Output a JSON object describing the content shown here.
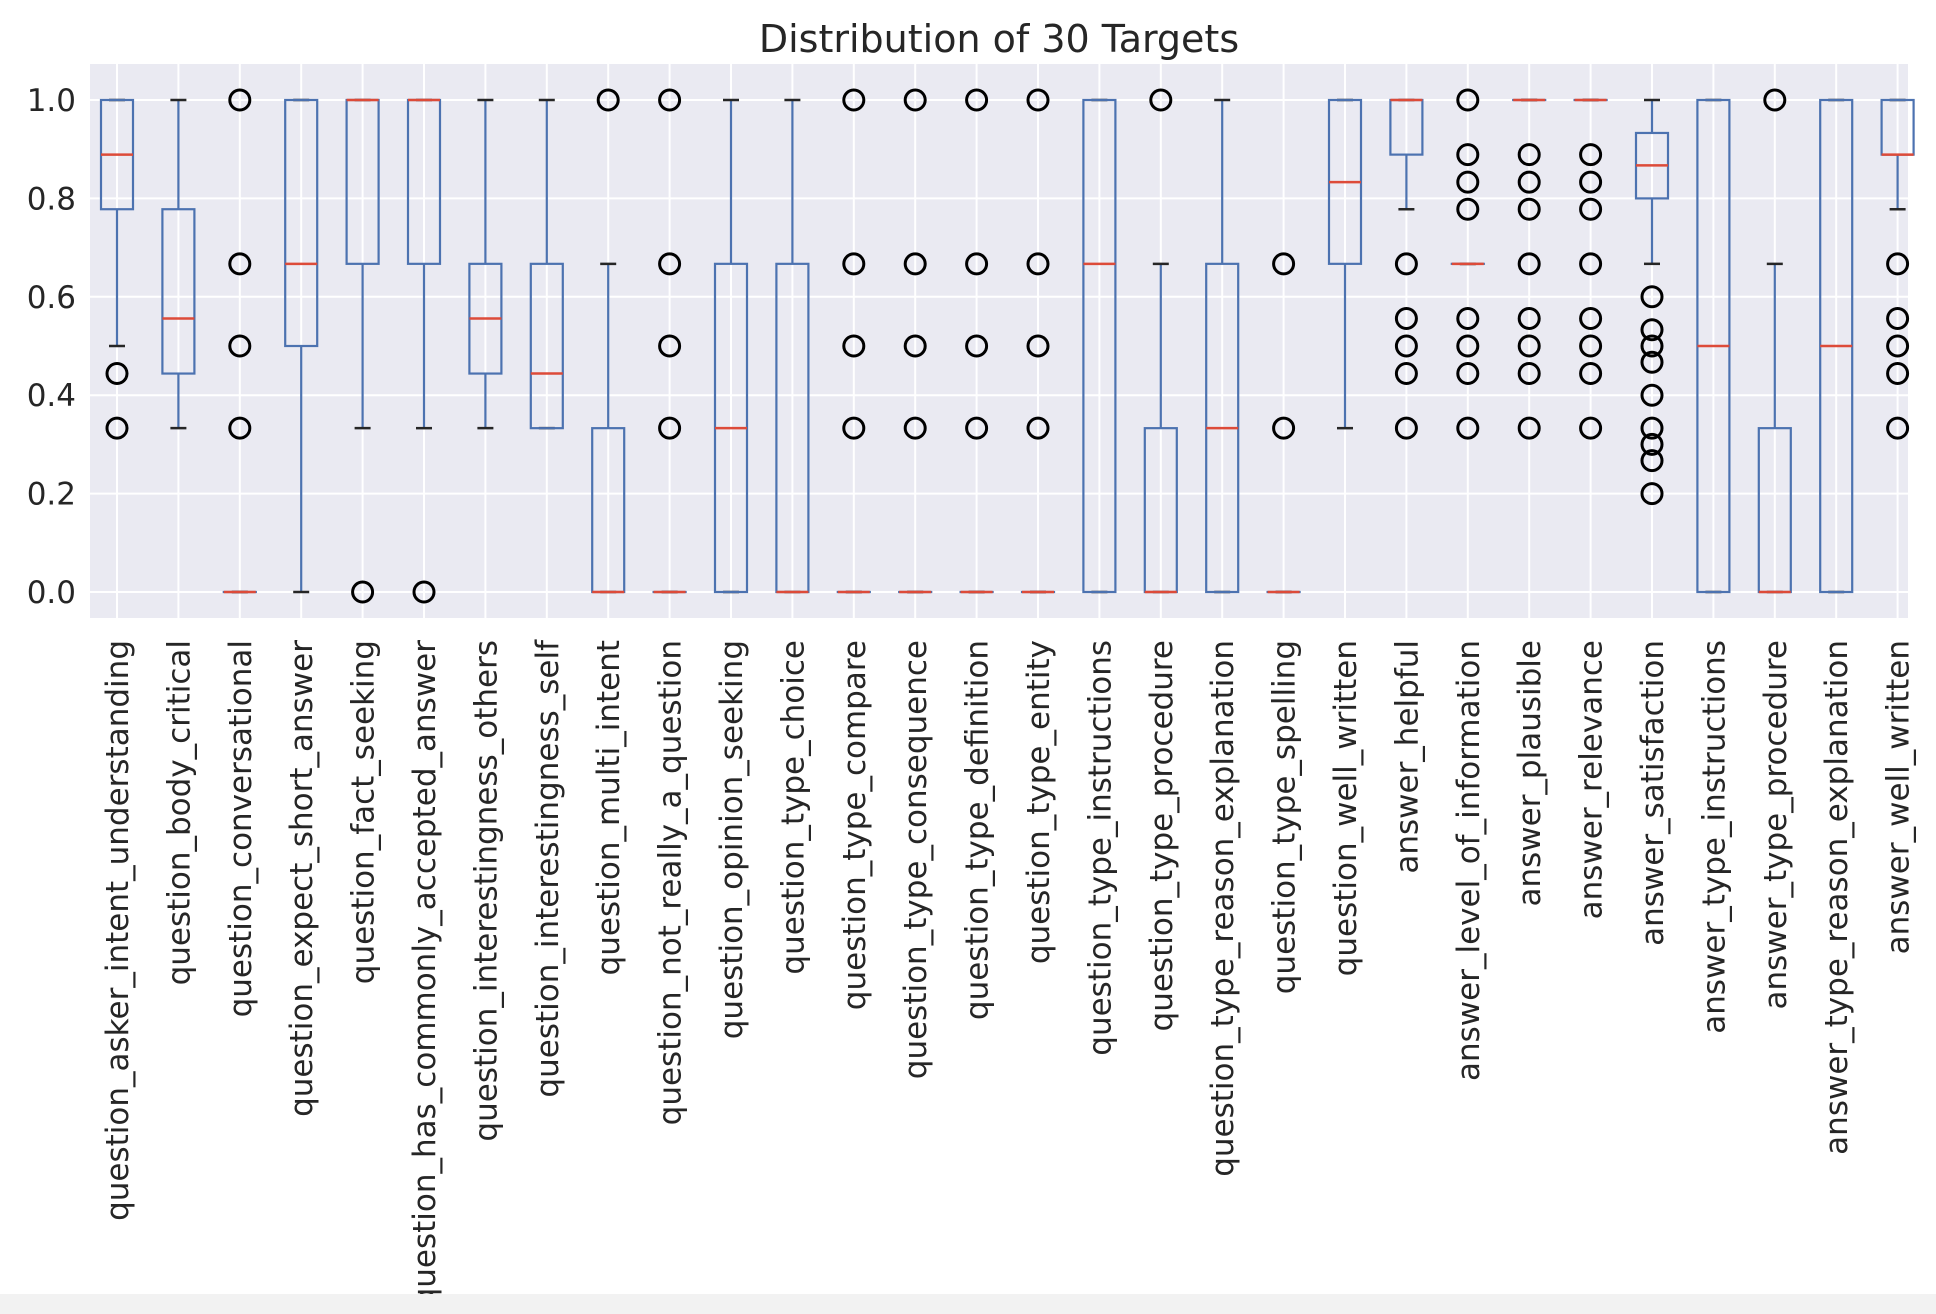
{
  "chart_data": {
    "type": "box",
    "title": "Distribution of 30 Targets",
    "xlabel": "",
    "ylabel": "",
    "ylim": [
      -0.05,
      1.05
    ],
    "yticks": [
      "0.0",
      "0.2",
      "0.4",
      "0.6",
      "0.8",
      "1.0"
    ],
    "grid": true,
    "colors": {
      "background": "#eaeaf2",
      "grid": "#ffffff",
      "box": "#4c72b0",
      "median": "#dd4b39",
      "flier": "#000000",
      "text": "#262626"
    },
    "categories": [
      "question_asker_intent_understanding",
      "question_body_critical",
      "question_conversational",
      "question_expect_short_answer",
      "question_fact_seeking",
      "question_has_commonly_accepted_answer",
      "question_interestingness_others",
      "question_interestingness_self",
      "question_multi_intent",
      "question_not_really_a_question",
      "question_opinion_seeking",
      "question_type_choice",
      "question_type_compare",
      "question_type_consequence",
      "question_type_definition",
      "question_type_entity",
      "question_type_instructions",
      "question_type_procedure",
      "question_type_reason_explanation",
      "question_type_spelling",
      "question_well_written",
      "answer_helpful",
      "answer_level_of_information",
      "answer_plausible",
      "answer_relevance",
      "answer_satisfaction",
      "answer_type_instructions",
      "answer_type_procedure",
      "answer_type_reason_explanation",
      "answer_well_written"
    ],
    "boxes": [
      {
        "whislo": 0.5,
        "q1": 0.778,
        "med": 0.889,
        "q3": 1.0,
        "whishi": 1.0,
        "fliers": [
          0.444,
          0.333
        ]
      },
      {
        "whislo": 0.333,
        "q1": 0.444,
        "med": 0.556,
        "q3": 0.778,
        "whishi": 1.0,
        "fliers": []
      },
      {
        "whislo": 0.0,
        "q1": 0.0,
        "med": 0.0,
        "q3": 0.0,
        "whishi": 0.0,
        "fliers": [
          1.0,
          0.667,
          0.5,
          0.333
        ]
      },
      {
        "whislo": 0.0,
        "q1": 0.5,
        "med": 0.667,
        "q3": 1.0,
        "whishi": 1.0,
        "fliers": []
      },
      {
        "whislo": 0.333,
        "q1": 0.667,
        "med": 1.0,
        "q3": 1.0,
        "whishi": 1.0,
        "fliers": [
          0.0
        ]
      },
      {
        "whislo": 0.333,
        "q1": 0.667,
        "med": 1.0,
        "q3": 1.0,
        "whishi": 1.0,
        "fliers": [
          0.0
        ]
      },
      {
        "whislo": 0.333,
        "q1": 0.444,
        "med": 0.556,
        "q3": 0.667,
        "whishi": 1.0,
        "fliers": []
      },
      {
        "whislo": 0.333,
        "q1": 0.333,
        "med": 0.444,
        "q3": 0.667,
        "whishi": 1.0,
        "fliers": []
      },
      {
        "whislo": 0.0,
        "q1": 0.0,
        "med": 0.0,
        "q3": 0.333,
        "whishi": 0.667,
        "fliers": [
          1.0
        ]
      },
      {
        "whislo": 0.0,
        "q1": 0.0,
        "med": 0.0,
        "q3": 0.0,
        "whishi": 0.0,
        "fliers": [
          1.0,
          0.667,
          0.5,
          0.333
        ]
      },
      {
        "whislo": 0.0,
        "q1": 0.0,
        "med": 0.333,
        "q3": 0.667,
        "whishi": 1.0,
        "fliers": []
      },
      {
        "whislo": 0.0,
        "q1": 0.0,
        "med": 0.0,
        "q3": 0.667,
        "whishi": 1.0,
        "fliers": []
      },
      {
        "whislo": 0.0,
        "q1": 0.0,
        "med": 0.0,
        "q3": 0.0,
        "whishi": 0.0,
        "fliers": [
          1.0,
          0.667,
          0.5,
          0.333
        ]
      },
      {
        "whislo": 0.0,
        "q1": 0.0,
        "med": 0.0,
        "q3": 0.0,
        "whishi": 0.0,
        "fliers": [
          1.0,
          0.667,
          0.5,
          0.333
        ]
      },
      {
        "whislo": 0.0,
        "q1": 0.0,
        "med": 0.0,
        "q3": 0.0,
        "whishi": 0.0,
        "fliers": [
          1.0,
          0.667,
          0.5,
          0.333
        ]
      },
      {
        "whislo": 0.0,
        "q1": 0.0,
        "med": 0.0,
        "q3": 0.0,
        "whishi": 0.0,
        "fliers": [
          1.0,
          0.667,
          0.5,
          0.333
        ]
      },
      {
        "whislo": 0.0,
        "q1": 0.0,
        "med": 0.667,
        "q3": 1.0,
        "whishi": 1.0,
        "fliers": []
      },
      {
        "whislo": 0.0,
        "q1": 0.0,
        "med": 0.0,
        "q3": 0.333,
        "whishi": 0.667,
        "fliers": [
          1.0
        ]
      },
      {
        "whislo": 0.0,
        "q1": 0.0,
        "med": 0.333,
        "q3": 0.667,
        "whishi": 1.0,
        "fliers": []
      },
      {
        "whislo": 0.0,
        "q1": 0.0,
        "med": 0.0,
        "q3": 0.0,
        "whishi": 0.0,
        "fliers": [
          0.667,
          0.333
        ]
      },
      {
        "whislo": 0.333,
        "q1": 0.667,
        "med": 0.833,
        "q3": 1.0,
        "whishi": 1.0,
        "fliers": []
      },
      {
        "whislo": 0.778,
        "q1": 0.889,
        "med": 1.0,
        "q3": 1.0,
        "whishi": 1.0,
        "fliers": [
          0.667,
          0.556,
          0.5,
          0.444,
          0.333
        ]
      },
      {
        "whislo": 0.667,
        "q1": 0.667,
        "med": 0.667,
        "q3": 0.667,
        "whishi": 0.667,
        "fliers": [
          1.0,
          0.889,
          0.833,
          0.778,
          0.556,
          0.5,
          0.444,
          0.333
        ]
      },
      {
        "whislo": 1.0,
        "q1": 1.0,
        "med": 1.0,
        "q3": 1.0,
        "whishi": 1.0,
        "fliers": [
          0.889,
          0.833,
          0.778,
          0.667,
          0.556,
          0.5,
          0.444,
          0.333
        ]
      },
      {
        "whislo": 1.0,
        "q1": 1.0,
        "med": 1.0,
        "q3": 1.0,
        "whishi": 1.0,
        "fliers": [
          0.889,
          0.833,
          0.778,
          0.667,
          0.556,
          0.5,
          0.444,
          0.333
        ]
      },
      {
        "whislo": 0.667,
        "q1": 0.8,
        "med": 0.867,
        "q3": 0.933,
        "whishi": 1.0,
        "fliers": [
          0.6,
          0.533,
          0.5,
          0.467,
          0.4,
          0.333,
          0.3,
          0.267,
          0.2
        ]
      },
      {
        "whislo": 0.0,
        "q1": 0.0,
        "med": 0.5,
        "q3": 1.0,
        "whishi": 1.0,
        "fliers": []
      },
      {
        "whislo": 0.0,
        "q1": 0.0,
        "med": 0.0,
        "q3": 0.333,
        "whishi": 0.667,
        "fliers": [
          1.0
        ]
      },
      {
        "whislo": 0.0,
        "q1": 0.0,
        "med": 0.5,
        "q3": 1.0,
        "whishi": 1.0,
        "fliers": []
      },
      {
        "whislo": 0.778,
        "q1": 0.889,
        "med": 0.889,
        "q3": 1.0,
        "whishi": 1.0,
        "fliers": [
          0.667,
          0.556,
          0.5,
          0.444,
          0.333
        ]
      }
    ]
  }
}
